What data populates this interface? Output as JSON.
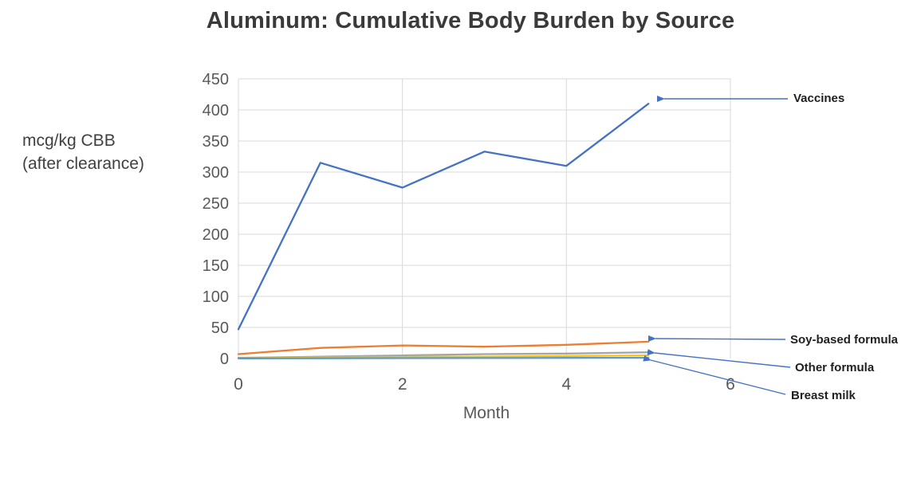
{
  "chart_data": {
    "type": "line",
    "title": "Aluminum: Cumulative Body Burden by Source",
    "ylabel_lines": [
      "mcg/kg CBB",
      "(after clearance)"
    ],
    "xlabel": "Month",
    "x": [
      0,
      1,
      2,
      3,
      4,
      5
    ],
    "xlim": [
      0,
      6
    ],
    "ylim": [
      0,
      450
    ],
    "xticks": [
      0,
      2,
      4,
      6
    ],
    "yticks": [
      450,
      400,
      350,
      300,
      250,
      200,
      150,
      100,
      50,
      0
    ],
    "grid": true,
    "legend_position": "none-arrow-annotations",
    "series": [
      {
        "id": "vaccines",
        "name": "Vaccines",
        "color": "#4472C4",
        "values": [
          47,
          315,
          275,
          333,
          310,
          410
        ]
      },
      {
        "id": "soy-based-formula",
        "name": "Soy-based formula",
        "color": "#ED7D31",
        "values": [
          7,
          17,
          21,
          19,
          22,
          27
        ]
      },
      {
        "id": "other-formula",
        "name": "Other formula",
        "color": "#A5A5A5",
        "values": [
          1,
          3,
          5,
          7,
          8,
          10
        ]
      },
      {
        "id": "unlabeled-yellow",
        "name": "",
        "color": "#FFC000",
        "values": [
          0.5,
          1.5,
          2.5,
          3,
          4,
          5
        ]
      },
      {
        "id": "breast-milk",
        "name": "Breast milk",
        "color": "#5B9BD5",
        "values": [
          0.2,
          0.4,
          0.6,
          0.8,
          1,
          1.2
        ]
      }
    ]
  },
  "annotations": [
    {
      "id": "vaccines",
      "label": "Vaccines"
    },
    {
      "id": "soy",
      "label": "Soy-based formula"
    },
    {
      "id": "other",
      "label": "Other formula"
    },
    {
      "id": "breast",
      "label": "Breast milk"
    }
  ],
  "colors": {
    "arrow": "#4472C4",
    "gridline": "#D9D9D9",
    "tick_text": "#595959",
    "title_text": "#3a3a3a"
  }
}
